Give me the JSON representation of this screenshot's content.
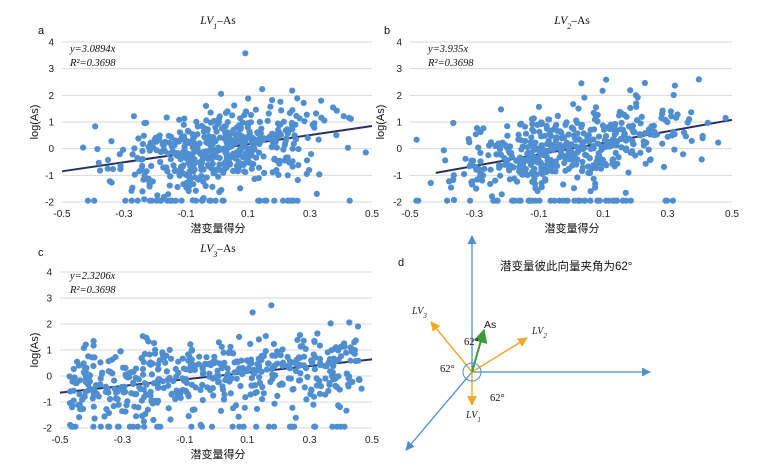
{
  "chart_data": [
    {
      "type": "scatter",
      "panel": "a",
      "title_main": "LV",
      "title_sub": "1",
      "title_suffix": "–As",
      "equation": "y=3.0894x",
      "r2": "R²=0.3698",
      "xlabel": "潜变量得分",
      "ylabel": "log(As)",
      "xlim": [
        -0.5,
        0.5
      ],
      "ylim": [
        -2,
        4
      ],
      "xticks": [
        "-0.5",
        "-0.3",
        "-0.1",
        "0.1",
        "0.3",
        "0.5"
      ],
      "yticks": [
        "-2",
        "-1",
        "0",
        "1",
        "2",
        "3",
        "4"
      ],
      "slope": 3.0894,
      "fit_x": [
        -0.5,
        0.5
      ],
      "grid": "horizontal",
      "point_color": "#4f8ed0",
      "line_color": "#2b2f5c"
    },
    {
      "type": "scatter",
      "panel": "b",
      "title_main": "LV",
      "title_sub": "2",
      "title_suffix": "–As",
      "equation": "y=3.935x",
      "r2": "R²=0.3698",
      "xlabel": "潜变量得分",
      "ylabel": "log(As)",
      "xlim": [
        -0.5,
        0.5
      ],
      "ylim": [
        -2,
        4
      ],
      "xticks": [
        "-0.5",
        "-0.3",
        "-0.1",
        "0.1",
        "0.3",
        "0.5"
      ],
      "yticks": [
        "-2",
        "-1",
        "0",
        "1",
        "2",
        "3",
        "4"
      ],
      "slope": 3.935,
      "fit_x": [
        -0.42,
        0.5
      ],
      "grid": "horizontal",
      "point_color": "#4f8ed0",
      "line_color": "#2b2f5c"
    },
    {
      "type": "scatter",
      "panel": "c",
      "title_main": "LV",
      "title_sub": "3",
      "title_suffix": "–As",
      "equation": "y=2.3206x",
      "r2": "R²=0.3698",
      "xlabel": "潜变量得分",
      "ylabel": "log(As)",
      "xlim": [
        -0.5,
        0.5
      ],
      "ylim": [
        -2,
        4
      ],
      "xticks": [
        "-0.5",
        "-0.3",
        "-0.1",
        "0.1",
        "0.3",
        "0.5"
      ],
      "yticks": [
        "-2",
        "-1",
        "0",
        "1",
        "2",
        "3",
        "4"
      ],
      "slope": 2.3206,
      "fit_x": [
        -0.5,
        0.5
      ],
      "grid": "horizontal",
      "point_color": "#4f8ed0",
      "line_color": "#2b2f5c"
    }
  ],
  "vector_panel": {
    "panel": "d",
    "note": "潜变量彼此向量夹角为62°",
    "angle_label": "62°",
    "as_label": "As",
    "lv_labels": [
      {
        "main": "LV",
        "sub": "1"
      },
      {
        "main": "LV",
        "sub": "2"
      },
      {
        "main": "LV",
        "sub": "3"
      }
    ],
    "axis_color": "#4f8ed0",
    "lv_color": "#f0a82a",
    "as_color": "#3a9a3a"
  }
}
